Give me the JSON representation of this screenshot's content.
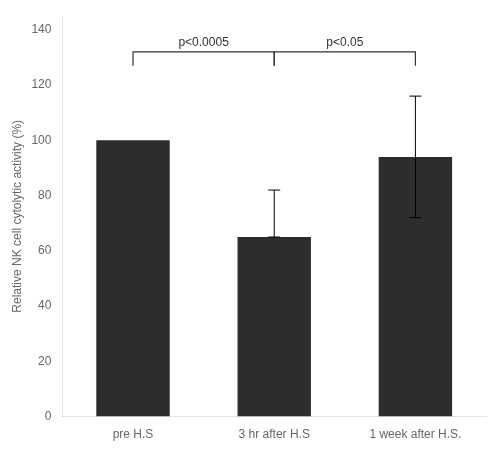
{
  "chart_data": {
    "type": "bar",
    "categories": [
      "pre H.S",
      "3 hr after H.S",
      "1 week after H.S."
    ],
    "values": [
      100,
      65,
      94
    ],
    "err_lower": [
      0,
      0,
      22
    ],
    "err_upper": [
      0,
      17,
      22
    ],
    "color": "#2d2d2d",
    "ylabel": "Relative NK cell cytolytic activity (%)",
    "ylim": [
      0,
      145
    ],
    "yticks": [
      0,
      20,
      40,
      60,
      80,
      100,
      120,
      140
    ],
    "grid": false,
    "annotations": [
      {
        "from": "pre H.S",
        "to": "3 hr after H.S",
        "y": 132,
        "drop": 5,
        "label": "p<0.0005",
        "color": "#333333"
      },
      {
        "from": "3 hr after H.S",
        "to": "1 week after H.S.",
        "y": 132,
        "drop": 5,
        "label": "p<0.05",
        "color": "#333333"
      }
    ]
  }
}
